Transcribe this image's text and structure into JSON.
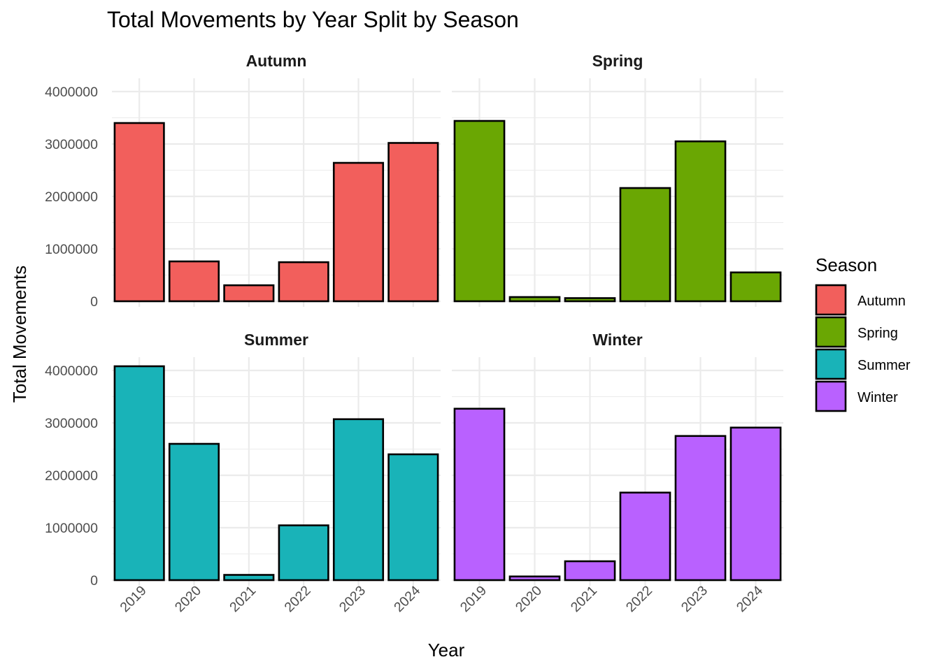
{
  "chart_data": {
    "type": "bar",
    "title": "Total Movements by Year Split by Season",
    "xlabel": "Year",
    "ylabel": "Total Movements",
    "ylim": [
      0,
      4000000
    ],
    "yticks": [
      "0",
      "1000000",
      "2000000",
      "3000000",
      "4000000"
    ],
    "yticks_values": [
      0,
      1000000,
      2000000,
      3000000,
      4000000
    ],
    "categories": [
      "2019",
      "2020",
      "2021",
      "2022",
      "2023",
      "2024"
    ],
    "grid": true,
    "facet_layout": "2x2",
    "legend": {
      "title": "Season",
      "placement": "right",
      "entries": [
        {
          "label": "Autumn",
          "color": "#F8766D"
        },
        {
          "label": "Spring",
          "color": "#7CAE00"
        },
        {
          "label": "Summer",
          "color": "#00BFC4"
        },
        {
          "label": "Winter",
          "color": "#C77CFF"
        }
      ]
    },
    "series": [
      {
        "name": "Autumn",
        "color": "#F25F5C",
        "values": [
          3400000,
          760000,
          305000,
          745000,
          2640000,
          3020000
        ]
      },
      {
        "name": "Spring",
        "color": "#6AA703",
        "values": [
          3440000,
          80000,
          60000,
          2160000,
          3050000,
          550000
        ]
      },
      {
        "name": "Summer",
        "color": "#19B3B8",
        "values": [
          4080000,
          2600000,
          100000,
          1045000,
          3070000,
          2400000
        ]
      },
      {
        "name": "Winter",
        "color": "#B961FF",
        "values": [
          3270000,
          70000,
          360000,
          1670000,
          2750000,
          2910000
        ]
      }
    ]
  }
}
